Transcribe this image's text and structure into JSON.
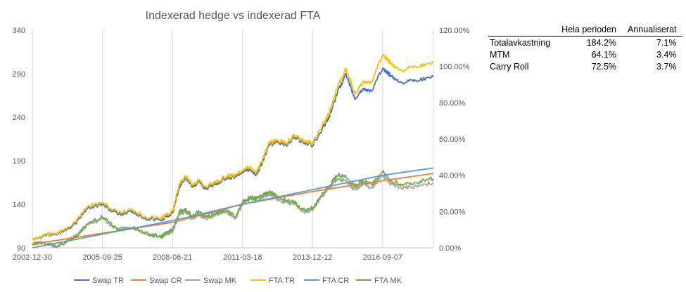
{
  "chart_data": {
    "type": "line",
    "title": "Indexerad hedge vs indexerad FTA",
    "y_left": {
      "min": 90,
      "max": 340,
      "ticks": [
        "90",
        "140",
        "190",
        "240",
        "290",
        "340"
      ]
    },
    "y_right": {
      "min": 0,
      "max": 1.2,
      "ticks": [
        "0.00%",
        "20.00%",
        "40.00%",
        "60.00%",
        "80.00%",
        "100.00%",
        "120.00%"
      ]
    },
    "x_ticks": [
      "2002-12-30",
      "2005-09-25",
      "2008-06-21",
      "2011-03-18",
      "2013-12-12",
      "2016-09-07"
    ],
    "x_range": [
      "2002-12-30",
      "2018-09-01"
    ],
    "grid": "vertical",
    "legend_position": "bottom",
    "series": [
      {
        "name": "Swap TR",
        "color": "#4472C4",
        "axis": "left",
        "points": [
          [
            "2002-12-30",
            100
          ],
          [
            "2003-06-01",
            103
          ],
          [
            "2004-01-01",
            106
          ],
          [
            "2004-09-01",
            118
          ],
          [
            "2005-03-01",
            136
          ],
          [
            "2005-09-25",
            140
          ],
          [
            "2006-05-01",
            128
          ],
          [
            "2006-12-01",
            132
          ],
          [
            "2007-06-01",
            124
          ],
          [
            "2008-01-01",
            122
          ],
          [
            "2008-04-01",
            126
          ],
          [
            "2008-06-21",
            130
          ],
          [
            "2008-10-01",
            160
          ],
          [
            "2009-01-01",
            170
          ],
          [
            "2009-04-01",
            160
          ],
          [
            "2009-07-01",
            166
          ],
          [
            "2009-10-01",
            158
          ],
          [
            "2010-03-01",
            164
          ],
          [
            "2010-08-01",
            170
          ],
          [
            "2010-12-01",
            172
          ],
          [
            "2011-03-18",
            178
          ],
          [
            "2011-07-01",
            180
          ],
          [
            "2011-10-01",
            174
          ],
          [
            "2012-01-01",
            190
          ],
          [
            "2012-04-01",
            208
          ],
          [
            "2012-08-01",
            212
          ],
          [
            "2012-12-01",
            208
          ],
          [
            "2013-04-01",
            218
          ],
          [
            "2013-08-01",
            210
          ],
          [
            "2013-12-12",
            208
          ],
          [
            "2014-04-01",
            222
          ],
          [
            "2014-08-01",
            240
          ],
          [
            "2014-12-01",
            268
          ],
          [
            "2015-04-01",
            290
          ],
          [
            "2015-08-01",
            262
          ],
          [
            "2015-12-01",
            272
          ],
          [
            "2016-04-01",
            270
          ],
          [
            "2016-09-07",
            296
          ],
          [
            "2017-01-01",
            288
          ],
          [
            "2017-06-01",
            280
          ],
          [
            "2018-01-01",
            282
          ],
          [
            "2018-09-01",
            286
          ]
        ]
      },
      {
        "name": "Swap CR",
        "color": "#ED7D31",
        "axis": "right",
        "points": [
          [
            "2002-12-30",
            0.02
          ],
          [
            "2008-06-21",
            0.14
          ],
          [
            "2011-03-18",
            0.24
          ],
          [
            "2013-12-12",
            0.31
          ],
          [
            "2016-09-07",
            0.37
          ],
          [
            "2018-09-01",
            0.41
          ]
        ]
      },
      {
        "name": "Swap MK",
        "color": "#A5A5A5",
        "axis": "right",
        "points": [
          [
            "2002-12-30",
            0.02
          ],
          [
            "2003-06-01",
            0.03
          ],
          [
            "2004-01-01",
            0.01
          ],
          [
            "2004-09-01",
            0.06
          ],
          [
            "2005-03-01",
            0.13
          ],
          [
            "2005-09-25",
            0.16
          ],
          [
            "2006-05-01",
            0.1
          ],
          [
            "2006-12-01",
            0.11
          ],
          [
            "2007-06-01",
            0.08
          ],
          [
            "2008-01-01",
            0.06
          ],
          [
            "2008-04-01",
            0.08
          ],
          [
            "2008-06-21",
            0.09
          ],
          [
            "2008-10-01",
            0.19
          ],
          [
            "2009-01-01",
            0.2
          ],
          [
            "2009-04-01",
            0.16
          ],
          [
            "2009-07-01",
            0.19
          ],
          [
            "2009-10-01",
            0.16
          ],
          [
            "2010-03-01",
            0.18
          ],
          [
            "2010-08-01",
            0.2
          ],
          [
            "2010-12-01",
            0.16
          ],
          [
            "2011-03-18",
            0.24
          ],
          [
            "2011-07-01",
            0.27
          ],
          [
            "2011-10-01",
            0.26
          ],
          [
            "2012-01-01",
            0.28
          ],
          [
            "2012-04-01",
            0.3
          ],
          [
            "2012-08-01",
            0.27
          ],
          [
            "2012-12-01",
            0.25
          ],
          [
            "2013-04-01",
            0.24
          ],
          [
            "2013-08-01",
            0.2
          ],
          [
            "2013-12-12",
            0.21
          ],
          [
            "2014-04-01",
            0.27
          ],
          [
            "2014-08-01",
            0.33
          ],
          [
            "2014-12-01",
            0.38
          ],
          [
            "2015-04-01",
            0.37
          ],
          [
            "2015-08-01",
            0.32
          ],
          [
            "2015-12-01",
            0.35
          ],
          [
            "2016-04-01",
            0.33
          ],
          [
            "2016-09-07",
            0.4
          ],
          [
            "2017-01-01",
            0.35
          ],
          [
            "2017-06-01",
            0.33
          ],
          [
            "2018-01-01",
            0.34
          ],
          [
            "2018-09-01",
            0.36
          ]
        ]
      },
      {
        "name": "FTA TR",
        "color": "#FFC000",
        "axis": "left",
        "points": [
          [
            "2002-12-30",
            100
          ],
          [
            "2003-06-01",
            104
          ],
          [
            "2004-01-01",
            107
          ],
          [
            "2004-09-01",
            120
          ],
          [
            "2005-03-01",
            138
          ],
          [
            "2005-09-25",
            142
          ],
          [
            "2006-05-01",
            130
          ],
          [
            "2006-12-01",
            134
          ],
          [
            "2007-06-01",
            126
          ],
          [
            "2008-01-01",
            124
          ],
          [
            "2008-04-01",
            128
          ],
          [
            "2008-06-21",
            132
          ],
          [
            "2008-10-01",
            164
          ],
          [
            "2009-01-01",
            172
          ],
          [
            "2009-04-01",
            162
          ],
          [
            "2009-07-01",
            168
          ],
          [
            "2009-10-01",
            160
          ],
          [
            "2010-03-01",
            166
          ],
          [
            "2010-08-01",
            172
          ],
          [
            "2010-12-01",
            174
          ],
          [
            "2011-03-18",
            180
          ],
          [
            "2011-07-01",
            183
          ],
          [
            "2011-10-01",
            177
          ],
          [
            "2012-01-01",
            193
          ],
          [
            "2012-04-01",
            210
          ],
          [
            "2012-08-01",
            214
          ],
          [
            "2012-12-01",
            210
          ],
          [
            "2013-04-01",
            220
          ],
          [
            "2013-08-01",
            212
          ],
          [
            "2013-12-12",
            210
          ],
          [
            "2014-04-01",
            226
          ],
          [
            "2014-08-01",
            244
          ],
          [
            "2014-12-01",
            274
          ],
          [
            "2015-04-01",
            296
          ],
          [
            "2015-08-01",
            268
          ],
          [
            "2015-12-01",
            280
          ],
          [
            "2016-04-01",
            280
          ],
          [
            "2016-09-07",
            312
          ],
          [
            "2017-01-01",
            302
          ],
          [
            "2017-06-01",
            294
          ],
          [
            "2018-01-01",
            298
          ],
          [
            "2018-09-01",
            302
          ]
        ]
      },
      {
        "name": "FTA CR",
        "color": "#5B9BD5",
        "axis": "right",
        "points": [
          [
            "2002-12-30",
            0.0
          ],
          [
            "2008-06-21",
            0.15
          ],
          [
            "2011-03-18",
            0.24
          ],
          [
            "2013-12-12",
            0.32
          ],
          [
            "2016-09-07",
            0.4
          ],
          [
            "2018-09-01",
            0.44
          ]
        ]
      },
      {
        "name": "FTA MK",
        "color": "#70AD47",
        "axis": "right",
        "points": [
          [
            "2002-12-30",
            0.02
          ],
          [
            "2003-06-01",
            0.03
          ],
          [
            "2004-01-01",
            0.01
          ],
          [
            "2004-09-01",
            0.06
          ],
          [
            "2005-03-01",
            0.13
          ],
          [
            "2005-09-25",
            0.17
          ],
          [
            "2006-05-01",
            0.1
          ],
          [
            "2006-12-01",
            0.11
          ],
          [
            "2007-06-01",
            0.08
          ],
          [
            "2008-01-01",
            0.06
          ],
          [
            "2008-04-01",
            0.08
          ],
          [
            "2008-06-21",
            0.1
          ],
          [
            "2008-10-01",
            0.2
          ],
          [
            "2009-01-01",
            0.21
          ],
          [
            "2009-04-01",
            0.17
          ],
          [
            "2009-07-01",
            0.2
          ],
          [
            "2009-10-01",
            0.17
          ],
          [
            "2010-03-01",
            0.19
          ],
          [
            "2010-08-01",
            0.21
          ],
          [
            "2010-12-01",
            0.17
          ],
          [
            "2011-03-18",
            0.25
          ],
          [
            "2011-07-01",
            0.28
          ],
          [
            "2011-10-01",
            0.27
          ],
          [
            "2012-01-01",
            0.29
          ],
          [
            "2012-04-01",
            0.31
          ],
          [
            "2012-08-01",
            0.28
          ],
          [
            "2012-12-01",
            0.26
          ],
          [
            "2013-04-01",
            0.25
          ],
          [
            "2013-08-01",
            0.21
          ],
          [
            "2013-12-12",
            0.22
          ],
          [
            "2014-04-01",
            0.28
          ],
          [
            "2014-08-01",
            0.34
          ],
          [
            "2014-12-01",
            0.4
          ],
          [
            "2015-04-01",
            0.39
          ],
          [
            "2015-08-01",
            0.34
          ],
          [
            "2015-12-01",
            0.37
          ],
          [
            "2016-04-01",
            0.35
          ],
          [
            "2016-09-07",
            0.42
          ],
          [
            "2017-01-01",
            0.37
          ],
          [
            "2017-06-01",
            0.35
          ],
          [
            "2018-01-01",
            0.36
          ],
          [
            "2018-09-01",
            0.38
          ]
        ]
      }
    ]
  },
  "summary_table": {
    "headers": [
      "",
      "Hela perioden",
      "Annualiserat"
    ],
    "rows": [
      {
        "label": "Totalavkastning",
        "period": "184.2%",
        "annual": "7.1%"
      },
      {
        "label": "MTM",
        "period": "64.1%",
        "annual": "3.4%"
      },
      {
        "label": "Carry Roll",
        "period": "72.5%",
        "annual": "3.7%"
      }
    ]
  }
}
